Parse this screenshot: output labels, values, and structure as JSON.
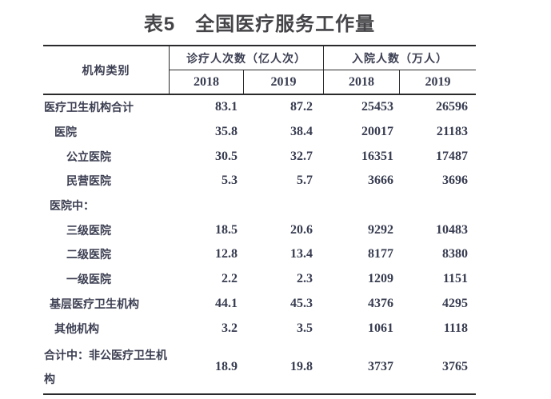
{
  "title": "表5　全国医疗服务工作量",
  "table": {
    "corner_header": "机构类别",
    "col_groups": [
      {
        "label": "诊疗人次数（亿人次）",
        "years": [
          "2018",
          "2019"
        ]
      },
      {
        "label": "入院人数（万人）",
        "years": [
          "2018",
          "2019"
        ]
      }
    ],
    "rows": [
      {
        "label": "医疗卫生机构合计",
        "indent": 0,
        "values": [
          "83.1",
          "87.2",
          "25453",
          "26596"
        ]
      },
      {
        "label": "医院",
        "indent": 2,
        "values": [
          "35.8",
          "38.4",
          "20017",
          "21183"
        ]
      },
      {
        "label": "公立医院",
        "indent": 3,
        "values": [
          "30.5",
          "32.7",
          "16351",
          "17487"
        ]
      },
      {
        "label": "民营医院",
        "indent": 3,
        "values": [
          "5.3",
          "5.7",
          "3666",
          "3696"
        ]
      },
      {
        "label": "医院中：",
        "indent": 1,
        "values": [
          "",
          "",
          "",
          ""
        ]
      },
      {
        "label": "三级医院",
        "indent": 3,
        "values": [
          "18.5",
          "20.6",
          "9292",
          "10483"
        ]
      },
      {
        "label": "二级医院",
        "indent": 3,
        "values": [
          "12.8",
          "13.4",
          "8177",
          "8380"
        ]
      },
      {
        "label": "一级医院",
        "indent": 3,
        "values": [
          "2.2",
          "2.3",
          "1209",
          "1151"
        ]
      },
      {
        "label": "基层医疗卫生机构",
        "indent": 1,
        "values": [
          "44.1",
          "45.3",
          "4376",
          "4295"
        ]
      },
      {
        "label": "其他机构",
        "indent": 2,
        "values": [
          "3.2",
          "3.5",
          "1061",
          "1118"
        ]
      },
      {
        "label": "合计中：非公医疗卫生机构",
        "indent": 0,
        "values": [
          "18.9",
          "19.8",
          "3737",
          "3765"
        ]
      }
    ],
    "colors": {
      "line": "#2a2a2d",
      "text": "#3c3f52",
      "number_text": "#373c50",
      "title_text": "#454549",
      "background": "#ffffff"
    }
  }
}
